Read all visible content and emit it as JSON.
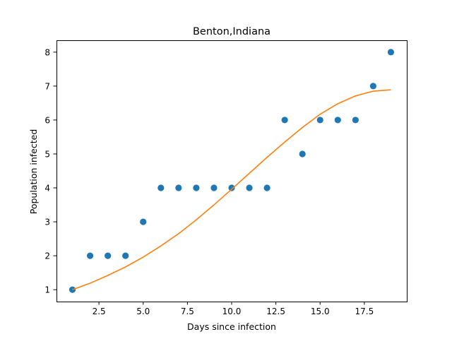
{
  "chart_data": {
    "type": "scatter",
    "title": "Benton,Indiana",
    "xlabel": "Days since infection",
    "ylabel": "Population infected",
    "xlim": [
      0.1,
      19.9
    ],
    "ylim": [
      0.65,
      8.35
    ],
    "xticks": [
      2.5,
      5.0,
      7.5,
      10.0,
      12.5,
      15.0,
      17.5
    ],
    "xtick_labels": [
      "2.5",
      "5.0",
      "7.5",
      "10.0",
      "12.5",
      "15.0",
      "17.5"
    ],
    "yticks": [
      1,
      2,
      3,
      4,
      5,
      6,
      7,
      8
    ],
    "ytick_labels": [
      "1",
      "2",
      "3",
      "4",
      "5",
      "6",
      "7",
      "8"
    ],
    "grid": false,
    "series": [
      {
        "kind": "scatter",
        "color": "#1f77b4",
        "x": [
          1,
          2,
          3,
          4,
          5,
          6,
          7,
          8,
          9,
          10,
          11,
          12,
          13,
          14,
          15,
          16,
          17,
          18,
          19
        ],
        "y": [
          1,
          2,
          2,
          2,
          3,
          4,
          4,
          4,
          4,
          4,
          4,
          4,
          6,
          5,
          6,
          6,
          6,
          7,
          8
        ]
      },
      {
        "kind": "line",
        "color": "#ff7f0e",
        "x": [
          1,
          2,
          3,
          4,
          5,
          6,
          7,
          8,
          9,
          10,
          11,
          12,
          13,
          14,
          15,
          16,
          17,
          18,
          19
        ],
        "y": [
          1.0,
          1.19,
          1.42,
          1.67,
          1.96,
          2.29,
          2.65,
          3.06,
          3.5,
          3.96,
          4.43,
          4.9,
          5.35,
          5.78,
          6.17,
          6.48,
          6.71,
          6.85,
          6.89
        ]
      }
    ]
  }
}
